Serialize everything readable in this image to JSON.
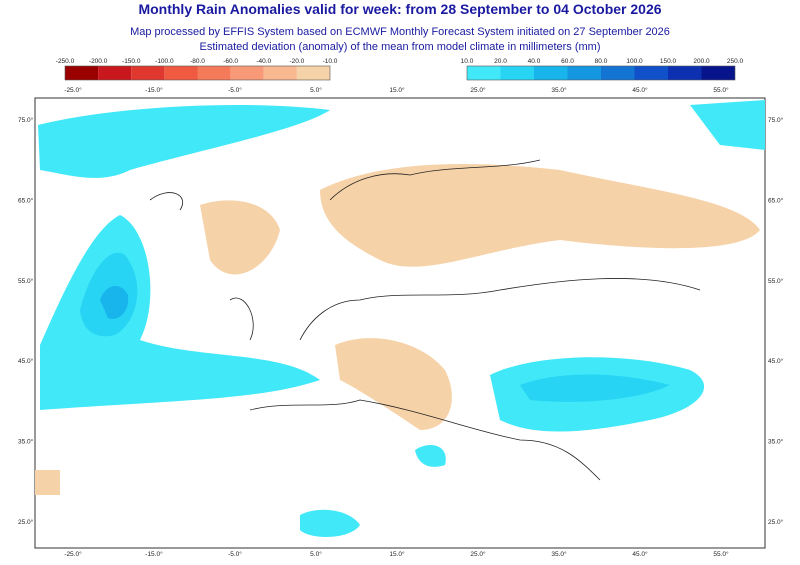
{
  "header": {
    "title": "Monthly Rain Anomalies valid for week: from 28 September to 04 October 2026",
    "subtitle": [
      "Map processed by EFFIS System based on ECMWF Monthly Forecast System initiated on 27 September 2026",
      "Estimated deviation (anomaly) of the mean from model climate in millimeters (mm)"
    ]
  },
  "legend": {
    "negative": {
      "labels": [
        "-250.0",
        "-200.0",
        "-150.0",
        "-100.0",
        "-80.0",
        "-60.0",
        "-40.0",
        "-20.0",
        "-10.0"
      ],
      "colors": [
        "#9b0000",
        "#c8181e",
        "#e0382e",
        "#f05a40",
        "#f57a5a",
        "#f89a78",
        "#f8b890",
        "#f6d2a8"
      ]
    },
    "positive": {
      "labels": [
        "10.0",
        "20.0",
        "40.0",
        "60.0",
        "80.0",
        "100.0",
        "150.0",
        "200.0",
        "250.0"
      ],
      "colors": [
        "#40e8f8",
        "#28d4f4",
        "#18b4ec",
        "#1496e0",
        "#1474d4",
        "#1050c8",
        "#0c30b0",
        "#08148c"
      ]
    }
  },
  "axes": {
    "longitudes": [
      "-25.0°",
      "-15.0°",
      "-5.0°",
      "5.0°",
      "15.0°",
      "25.0°",
      "35.0°",
      "45.0°",
      "55.0°"
    ],
    "latitudes": [
      "75.0°",
      "65.0°",
      "55.0°",
      "45.0°",
      "35.0°",
      "25.0°"
    ]
  }
}
